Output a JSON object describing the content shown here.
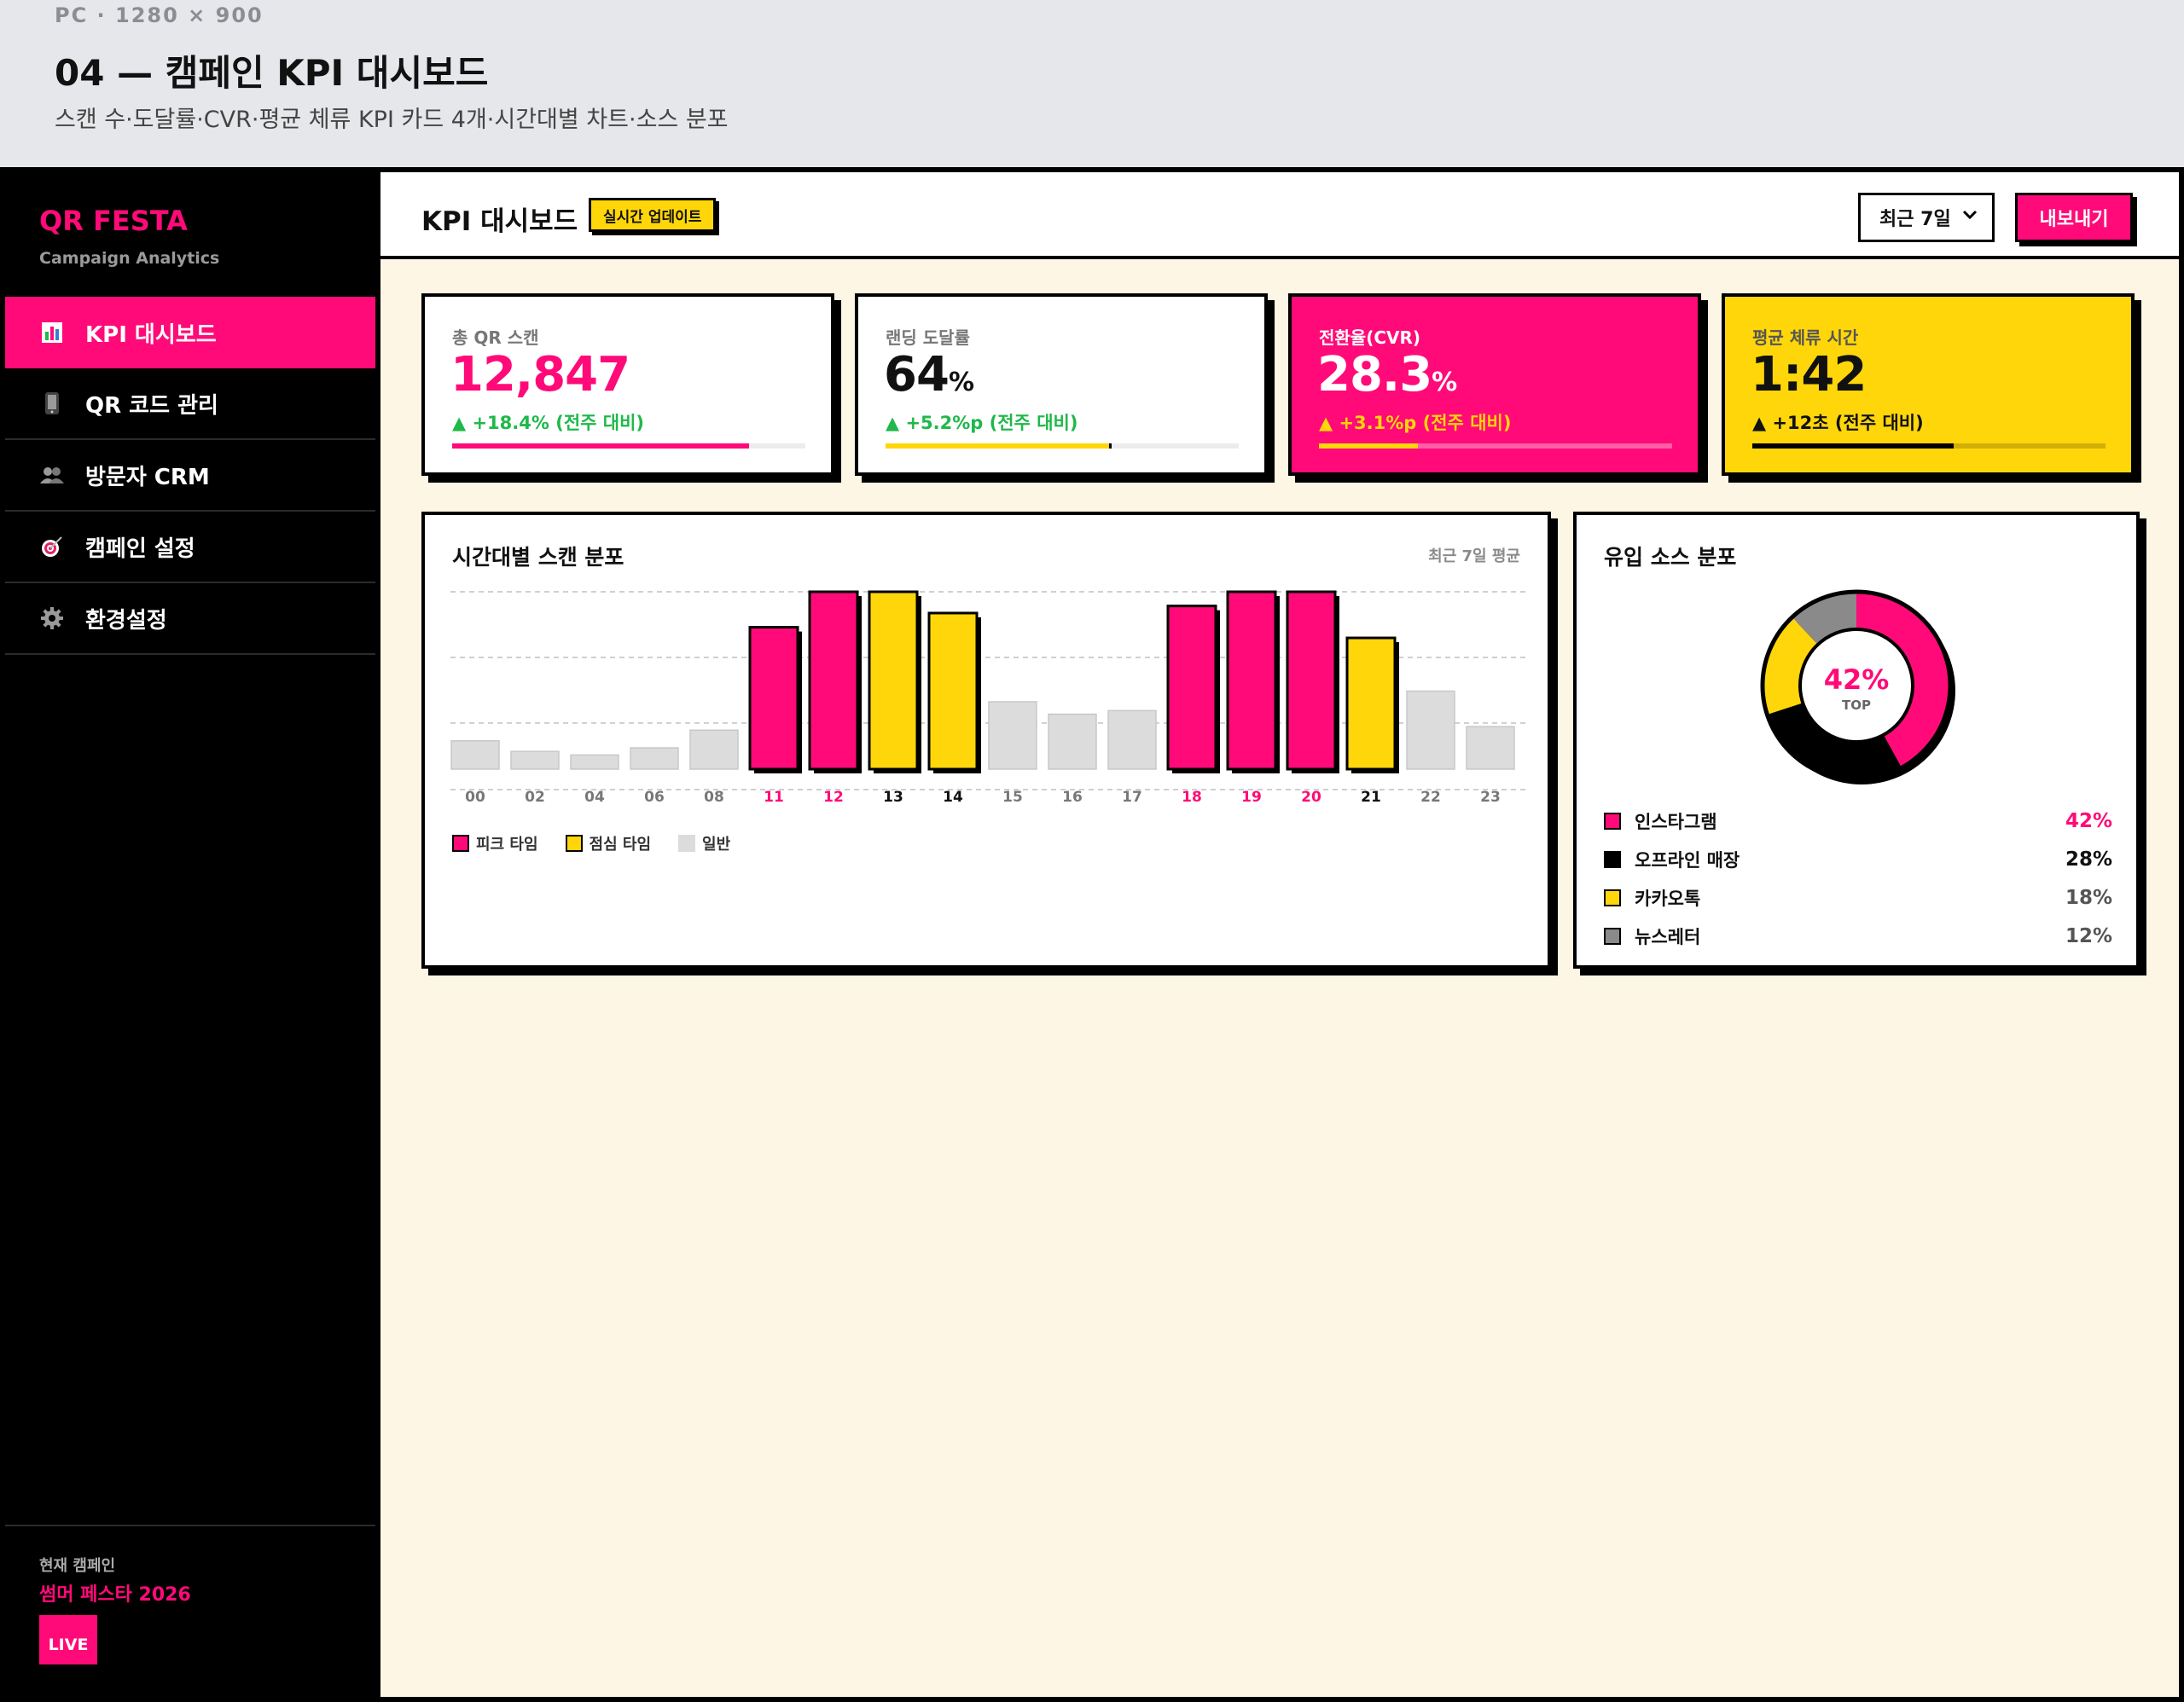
{
  "doc": {
    "meta": "PC · 1280 × 900",
    "title": "04 — 캠페인 KPI 대시보드",
    "subtitle": "스캔 수·도달률·CVR·평균 체류 KPI 카드 4개·시간대별 차트·소스 분포"
  },
  "colors": {
    "accent": "#ff0a78",
    "yellow": "#ffd60a",
    "black": "#000000",
    "gray": "#d9d9d9",
    "green": "#1fb84a",
    "cream": "#fdf6e5"
  },
  "sidebar": {
    "brand": "QR FESTA",
    "brand_sub": "Campaign Analytics",
    "items": [
      {
        "label": "KPI 대시보드",
        "icon": "bar-chart-icon",
        "active": true
      },
      {
        "label": "QR 코드 관리",
        "icon": "phone-icon",
        "active": false
      },
      {
        "label": "방문자 CRM",
        "icon": "users-icon",
        "active": false
      },
      {
        "label": "캠페인 설정",
        "icon": "target-icon",
        "active": false
      },
      {
        "label": "환경설정",
        "icon": "gear-icon",
        "active": false
      }
    ],
    "footer": {
      "label": "현재 캠페인",
      "campaign": "썸머 페스타 2026",
      "badge": "LIVE"
    }
  },
  "topbar": {
    "title": "KPI 대시보드",
    "live_chip": "실시간 업데이트",
    "range": "최근 7일",
    "export": "내보내기"
  },
  "kpis": [
    {
      "label": "총 QR 스캔",
      "value": "12,847",
      "unit": "",
      "delta": "▲ +18.4% (전주 대비)",
      "progress": 0.84
    },
    {
      "label": "랜딩 도달률",
      "value": "64",
      "unit": "%",
      "delta": "▲ +5.2%p (전주 대비)",
      "progress": 0.64
    },
    {
      "label": "전환율(CVR)",
      "value": "28.3",
      "unit": "%",
      "delta": "▲ +3.1%p (전주 대비)",
      "progress": 0.28
    },
    {
      "label": "평균 체류 시간",
      "value": "1:42",
      "unit": "",
      "delta": "▲ +12초 (전주 대비)",
      "progress": 0.57
    }
  ],
  "hourly": {
    "title": "시간대별 스캔 분포",
    "note": "최근 7일 평균",
    "legend": [
      "피크 타임",
      "점심 타임",
      "일반"
    ]
  },
  "sources": {
    "title": "유입 소스 분포",
    "center_value": "42%",
    "center_label": "TOP",
    "items": [
      {
        "name": "인스타그램",
        "pct": "42%",
        "value": 42,
        "color": "#ff0a78"
      },
      {
        "name": "오프라인 매장",
        "pct": "28%",
        "value": 28,
        "color": "#000000"
      },
      {
        "name": "카카오톡",
        "pct": "18%",
        "value": 18,
        "color": "#ffd60a"
      },
      {
        "name": "뉴스레터",
        "pct": "12%",
        "value": 12,
        "color": "#8a8a8a"
      }
    ]
  },
  "chart_data": [
    {
      "type": "bar",
      "title": "시간대별 스캔 분포",
      "categories": [
        "00",
        "02",
        "04",
        "06",
        "08",
        "11",
        "12",
        "13",
        "14",
        "15",
        "16",
        "17",
        "18",
        "19",
        "20",
        "21",
        "22",
        "23"
      ],
      "values": [
        16,
        10,
        8,
        12,
        22,
        80,
        100,
        100,
        88,
        38,
        31,
        33,
        92,
        100,
        100,
        74,
        44,
        24
      ],
      "kinds": [
        "normal",
        "normal",
        "normal",
        "normal",
        "normal",
        "peak",
        "peak",
        "lunch",
        "lunch",
        "normal",
        "normal",
        "normal",
        "peak",
        "peak",
        "peak",
        "lunch",
        "normal",
        "normal"
      ],
      "ylim": [
        0,
        100
      ],
      "grid": true,
      "legend": [
        "피크 타임",
        "점심 타임",
        "일반"
      ],
      "legend_position": "bottom-left"
    },
    {
      "type": "pie",
      "title": "유입 소스 분포",
      "categories": [
        "인스타그램",
        "오프라인 매장",
        "카카오톡",
        "뉴스레터"
      ],
      "values": [
        42,
        28,
        18,
        12
      ]
    }
  ]
}
